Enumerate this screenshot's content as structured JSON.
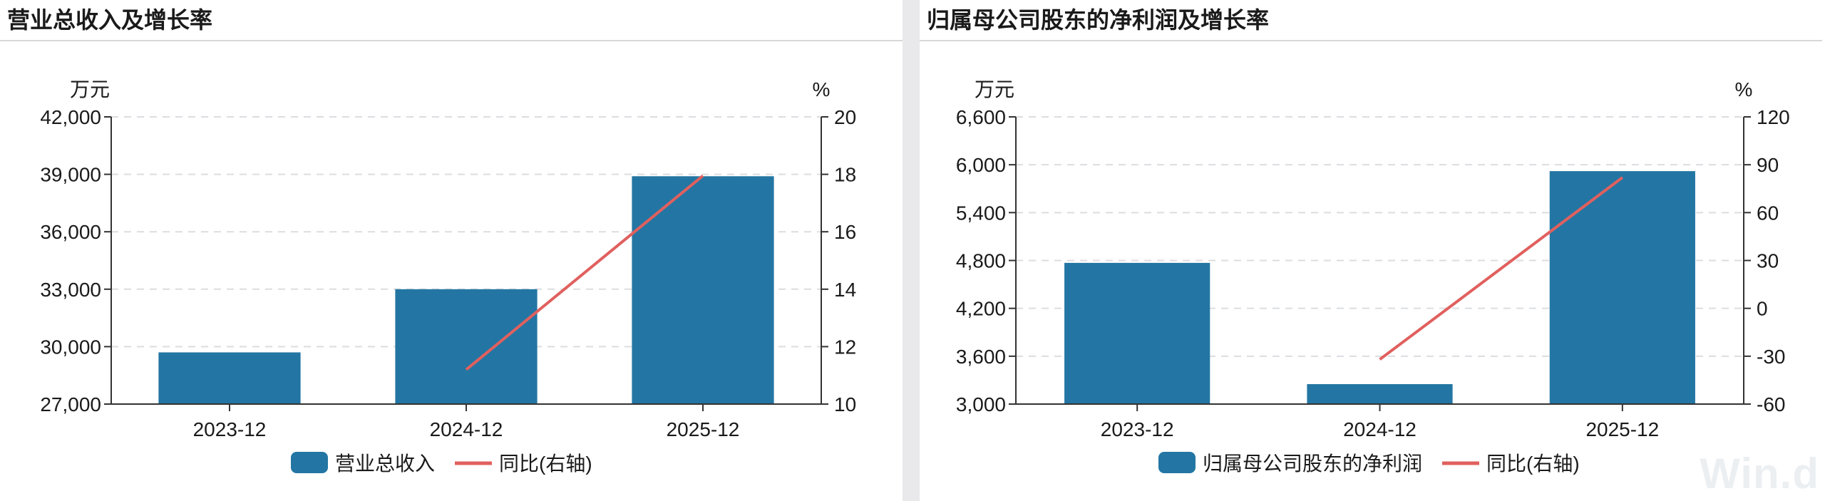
{
  "watermark": "Win.d",
  "charts": [
    {
      "panel_title": "营业总收入及增长率",
      "chart_data": {
        "type": "bar",
        "categories": [
          "2023-12",
          "2024-12",
          "2025-12"
        ],
        "series": [
          {
            "name": "营业总收入",
            "type": "bar",
            "axis": "left",
            "color": "#2376a3",
            "values": [
              29700,
              33000,
              38900
            ]
          },
          {
            "name": "同比(右轴)",
            "type": "line",
            "axis": "right",
            "color": "#e0605e",
            "values": [
              null,
              11.2,
              17.95
            ]
          }
        ],
        "left_axis": {
          "unit": "万元",
          "min": 27000,
          "max": 42000,
          "ticks": [
            "27,000",
            "30,000",
            "33,000",
            "36,000",
            "39,000",
            "42,000"
          ]
        },
        "right_axis": {
          "unit": "%",
          "min": 10,
          "max": 20,
          "ticks": [
            "10",
            "12",
            "14",
            "16",
            "18",
            "20"
          ]
        },
        "grid": true,
        "legend_position": "bottom"
      }
    },
    {
      "panel_title": "归属母公司股东的净利润及增长率",
      "chart_data": {
        "type": "bar",
        "categories": [
          "2023-12",
          "2024-12",
          "2025-12"
        ],
        "series": [
          {
            "name": "归属母公司股东的净利润",
            "type": "bar",
            "axis": "left",
            "color": "#2376a3",
            "values": [
              4770,
              3250,
              5920
            ]
          },
          {
            "name": "同比(右轴)",
            "type": "line",
            "axis": "right",
            "color": "#e0605e",
            "values": [
              null,
              -32,
              82
            ]
          }
        ],
        "left_axis": {
          "unit": "万元",
          "min": 3000,
          "max": 6600,
          "ticks": [
            "3,000",
            "3,600",
            "4,200",
            "4,800",
            "5,400",
            "6,000",
            "6,600"
          ]
        },
        "right_axis": {
          "unit": "%",
          "min": -60,
          "max": 120,
          "ticks": [
            "-60",
            "-30",
            "0",
            "30",
            "60",
            "90",
            "120"
          ]
        },
        "grid": true,
        "legend_position": "bottom"
      }
    }
  ]
}
